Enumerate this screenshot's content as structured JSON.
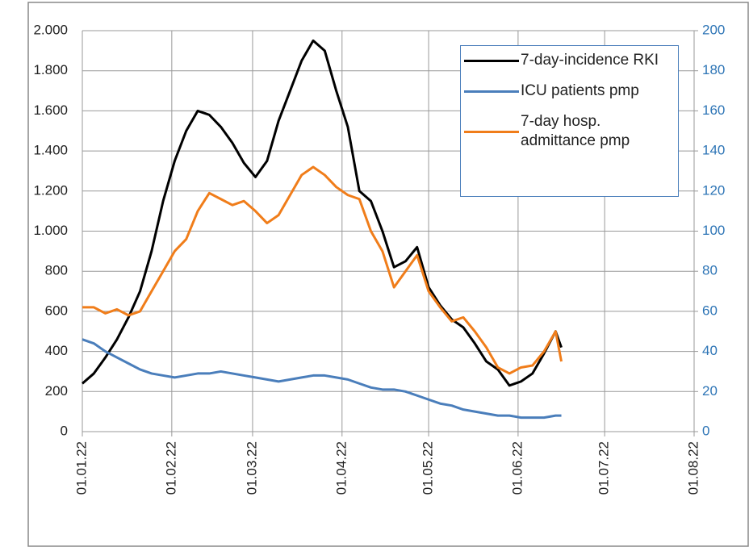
{
  "chart_data": {
    "type": "line",
    "x": [
      "01.01.22",
      "05.01.22",
      "09.01.22",
      "13.01.22",
      "17.01.22",
      "21.01.22",
      "25.01.22",
      "29.01.22",
      "02.02.22",
      "06.02.22",
      "10.02.22",
      "14.02.22",
      "18.02.22",
      "22.02.22",
      "26.02.22",
      "02.03.22",
      "06.03.22",
      "10.03.22",
      "14.03.22",
      "18.03.22",
      "22.03.22",
      "26.03.22",
      "30.03.22",
      "03.04.22",
      "07.04.22",
      "11.04.22",
      "15.04.22",
      "19.04.22",
      "23.04.22",
      "27.04.22",
      "01.05.22",
      "05.05.22",
      "09.05.22",
      "13.05.22",
      "17.05.22",
      "21.05.22",
      "25.05.22",
      "29.05.22",
      "02.06.22",
      "06.06.22",
      "10.06.22",
      "14.06.22",
      "16.06.22"
    ],
    "series": [
      {
        "name": "7-day-incidence RKI",
        "color": "#000000",
        "values": [
          240,
          290,
          370,
          460,
          570,
          700,
          900,
          1150,
          1350,
          1500,
          1600,
          1580,
          1520,
          1440,
          1340,
          1270,
          1350,
          1550,
          1700,
          1850,
          1950,
          1900,
          1700,
          1520,
          1200,
          1150,
          1000,
          820,
          850,
          920,
          720,
          630,
          560,
          520,
          440,
          350,
          310,
          230,
          250,
          290,
          390,
          500,
          420
        ]
      },
      {
        "name": "ICU patients pmp",
        "color": "#4a7ebb",
        "axis": "y2",
        "values": [
          46,
          44,
          40,
          37,
          34,
          31,
          29,
          28,
          27,
          28,
          29,
          29,
          30,
          29,
          28,
          27,
          26,
          25,
          26,
          27,
          28,
          28,
          27,
          26,
          24,
          22,
          21,
          21,
          20,
          18,
          16,
          14,
          13,
          11,
          10,
          9,
          8,
          8,
          7,
          7,
          7,
          8,
          8
        ]
      },
      {
        "name": "7-day hosp. admittance pmp",
        "color": "#f07d1a",
        "axis": "y2",
        "values": [
          62,
          62,
          59,
          61,
          58,
          60,
          70,
          80,
          90,
          96,
          110,
          119,
          116,
          113,
          115,
          110,
          104,
          108,
          118,
          128,
          132,
          128,
          122,
          118,
          116,
          100,
          90,
          72,
          80,
          88,
          70,
          62,
          55,
          57,
          50,
          42,
          32,
          29,
          32,
          33,
          40,
          50,
          35
        ]
      }
    ],
    "xlim": [
      "01.01.22",
      "01.08.22"
    ],
    "xticks": [
      "01.01.22",
      "01.02.22",
      "01.03.22",
      "01.04.22",
      "01.05.22",
      "01.06.22",
      "01.07.22",
      "01.08.22"
    ],
    "ylim": [
      0,
      2000
    ],
    "yticks": [
      0,
      200,
      400,
      600,
      800,
      {
        "value": 1000,
        "label": "1.000"
      },
      {
        "value": 1200,
        "label": "1.200"
      },
      {
        "value": 1400,
        "label": "1.400"
      },
      {
        "value": 1600,
        "label": "1.600"
      },
      {
        "value": 1800,
        "label": "1.800"
      },
      {
        "value": 2000,
        "label": "2.000"
      }
    ],
    "y2lim": [
      0,
      200
    ],
    "y2ticks": [
      0,
      20,
      40,
      60,
      80,
      100,
      120,
      140,
      160,
      180,
      200
    ],
    "y2color": "#2e75b6",
    "grid": true
  }
}
